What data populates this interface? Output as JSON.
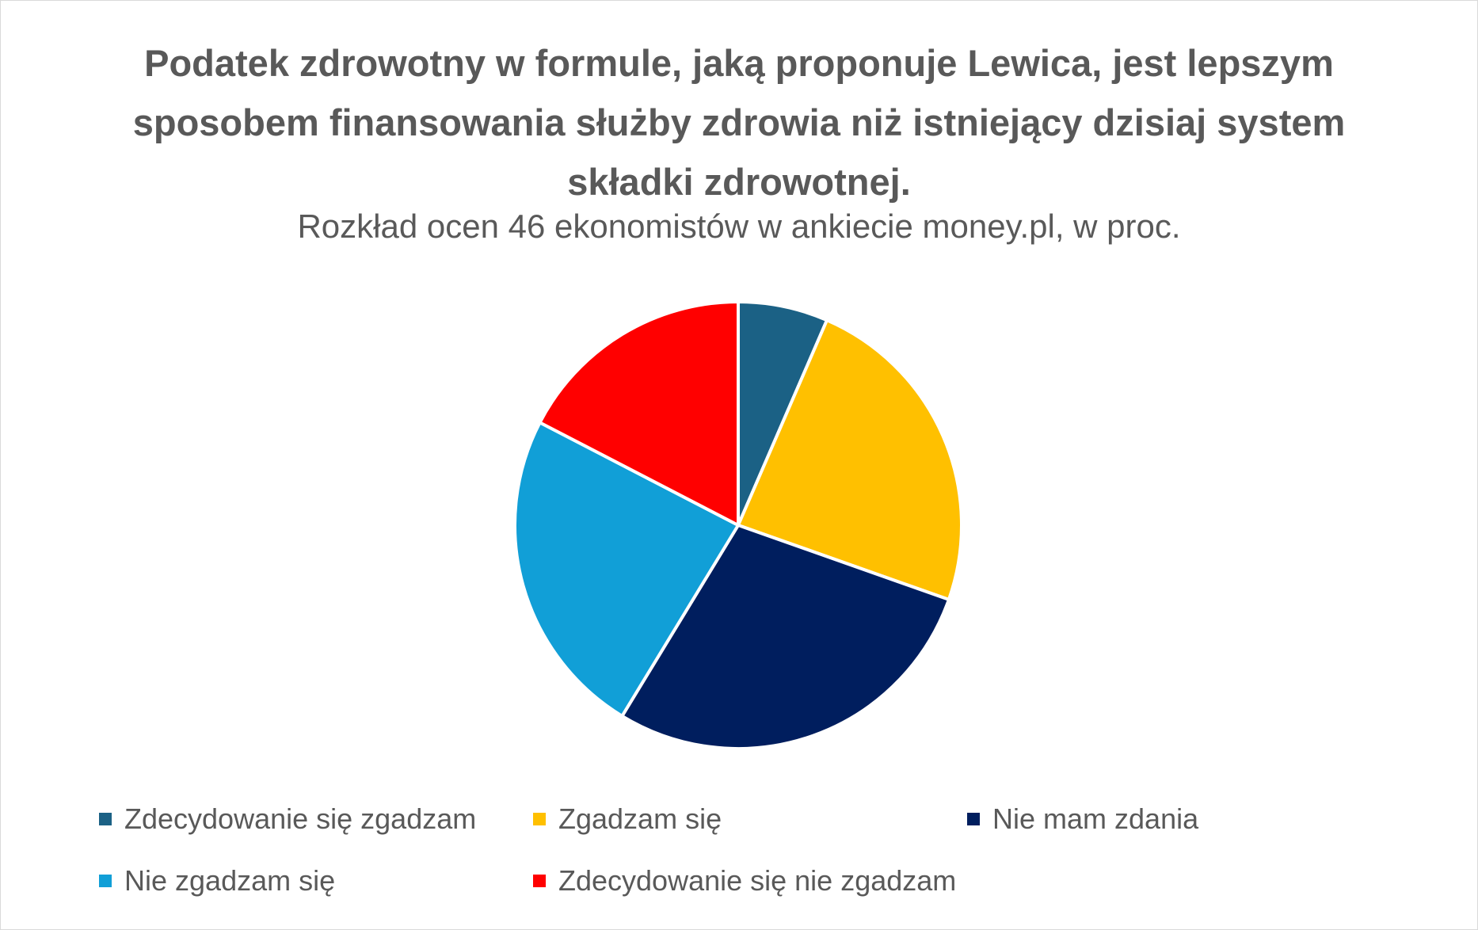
{
  "chart_data": {
    "type": "pie",
    "title": "Podatek zdrowotny w formule, jaką proponuje Lewica, jest lepszym sposobem finansowania służby zdrowia niż istniejący dzisiaj system składki zdrowotnej.",
    "subtitle": "Rozkład ocen 46 ekonomistów w ankiecie money.pl, w proc.",
    "categories": [
      "Zdecydowanie się zgadzam",
      "Zgadzam się",
      "Nie mam zdania",
      "Nie zgadzam się",
      "Zdecydowanie się nie zgadzam"
    ],
    "values": [
      6.5,
      23.9,
      28.3,
      23.9,
      17.4
    ],
    "colors": [
      "#1b6185",
      "#ffc000",
      "#001e5e",
      "#119fd7",
      "#ff0000"
    ]
  }
}
